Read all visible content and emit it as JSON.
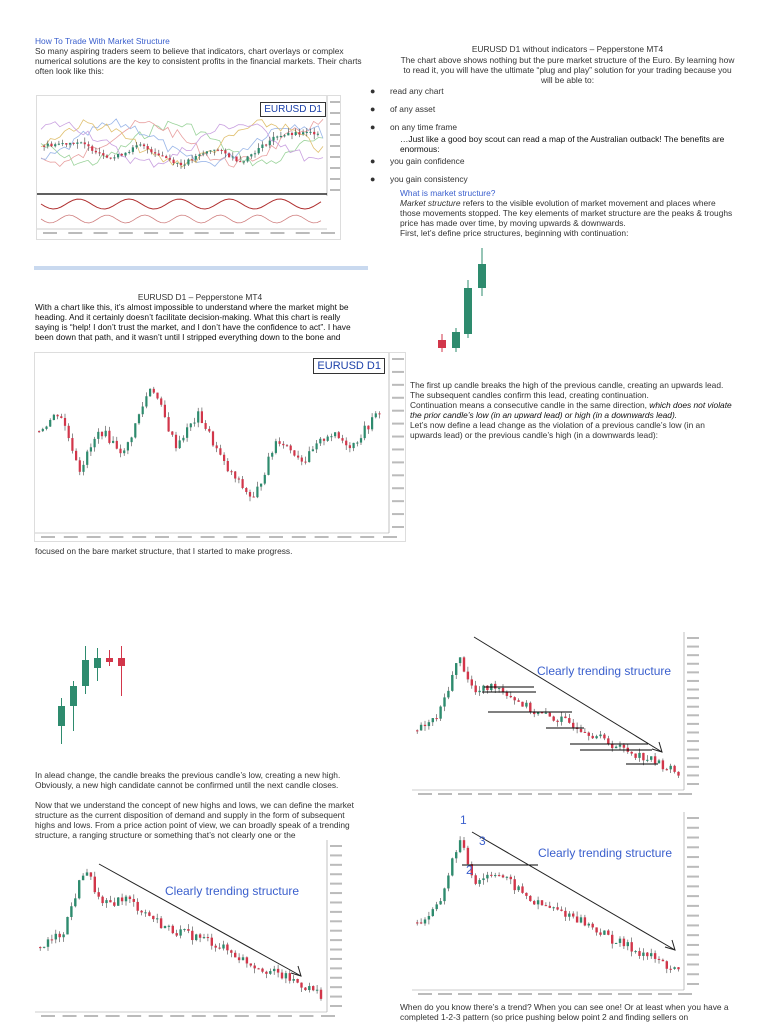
{
  "left_col": {
    "heading": "How To Trade With Market Structure",
    "intro": "So many aspiring traders seem to believe that indicators, chart overlays or complex numerical solutions are the key to consistent profits in the financial markets. Their charts often look like this:",
    "chart1_label": "EURUSD D1",
    "caption2": "EURUSD D1 – Pepperstone MT4",
    "para2": "With a chart like this, it’s almost impossible to understand where the market might be heading. And it certainly doesn’t facilitate decision-making. What this chart is really saying is “help! I don’t trust the market, and I don’t have the confidence to act”. I have been down that path, and it wasn’t until I stripped everything down to the bone and",
    "chart2_label": "EURUSD D1",
    "para3": "focused on the bare market structure, that I started to make progress.",
    "para4a": "In alead change, the candle breaks the previous candle’s low, creating a new high. Obviously, a new high candidate cannot be confirmed until the next candle closes.",
    "para4b": "Now that we understand the concept of new highs and lows, we can define the market structure as the current disposition of demand and supply in the form of subsequent highs and lows. From a price action point of view, we can broadly speak of a trending structure, a ranging structure or something that’s not clearly one or the",
    "chart_bl_label": "Clearly trending structure"
  },
  "right_col": {
    "caption1": "EURUSD D1 without indicators – Pepperstone MT4",
    "para1": "The chart above shows nothing but the pure market structure of the Euro. By learning how to read it, you will have the ultimate “plug and play” solution for your trading because you will be able to:",
    "bullets": [
      "read any chart",
      "of any asset",
      "on any time frame"
    ],
    "quote": "…Just like a good boy scout can read a map of the Australian outback! The benefits are enormous:",
    "bullets2": [
      "you gain confidence",
      "you gain consistency"
    ],
    "subheading": "What is market structure?",
    "def_term": "Market structure",
    "def_rest": " refers to the visible evolution of market movement and places where those movements stopped. The key elements of market structure are the peaks & troughs price has made over time, by moving upwards & downwards.",
    "def_line2": "First, let’s define price structures, beginning with continuation:",
    "para_cont1": "The first up candle breaks the high of the previous candle, creating an upwards lead. The subsequent candles confirm this lead, creating continuation.",
    "para_cont2a": "Continuation means a consecutive candle in the same direction, ",
    "para_cont2b": "which does not violate the prior candle’s low (in an upward lead) or high (in a downwards lead).",
    "para_cont3": "Let’s now define a lead change as the violation of a previous candle’s low (in an upwards lead) or the previous candle’s high (in a downwards lead):",
    "chart_tr_label": "Clearly trending structure",
    "chart_br_label": "Clearly trending structure",
    "pattern_labels": [
      "1",
      "3",
      "2"
    ],
    "bottom_para": "When do you know there’s a trend? When you can see one! Or at least when you have a completed 1-2-3 pattern (so price pushing below point 2 and finding sellers on"
  },
  "colors": {
    "link": "#3a5fcd",
    "bull": "#2e8b6e",
    "bear": "#d2364a",
    "trend_label": "#3a5fcd",
    "divider": "#c9d9ef"
  },
  "icons": [
    "bullet-dot"
  ]
}
